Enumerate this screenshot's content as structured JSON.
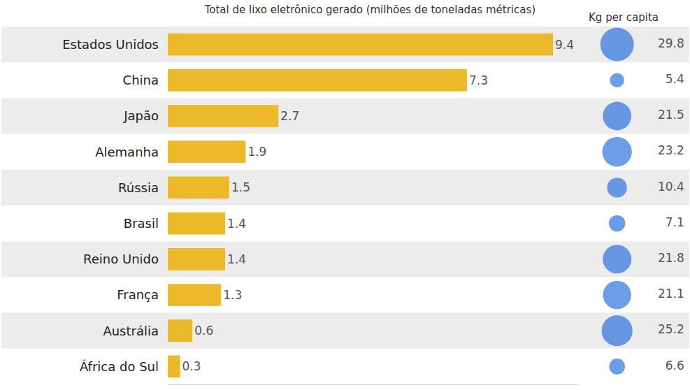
{
  "chart_data": [
    {
      "type": "bar",
      "title": "Total de lixo eletrônico gerado (milhões de toneladas métricas)",
      "orientation": "horizontal",
      "categories": [
        "Estados Unidos",
        "China",
        "Japão",
        "Alemanha",
        "Rússia",
        "Brasil",
        "Reino Unido",
        "França",
        "Austrália",
        "África do Sul"
      ],
      "values": [
        9.4,
        7.3,
        2.7,
        1.9,
        1.5,
        1.4,
        1.4,
        1.3,
        0.6,
        0.3
      ],
      "color": "#ecb92a",
      "data_labels": true,
      "xlim": [
        0,
        10
      ],
      "tick_labels": "y"
    },
    {
      "type": "scatter",
      "title": "Kg per capita",
      "values": [
        29.8,
        5.4,
        21.5,
        23.2,
        10.4,
        7.1,
        21.8,
        21.1,
        25.2,
        6.6
      ],
      "color": "#2f73e0",
      "marker": "circle",
      "data_labels": true,
      "tick_labels": false
    }
  ]
}
